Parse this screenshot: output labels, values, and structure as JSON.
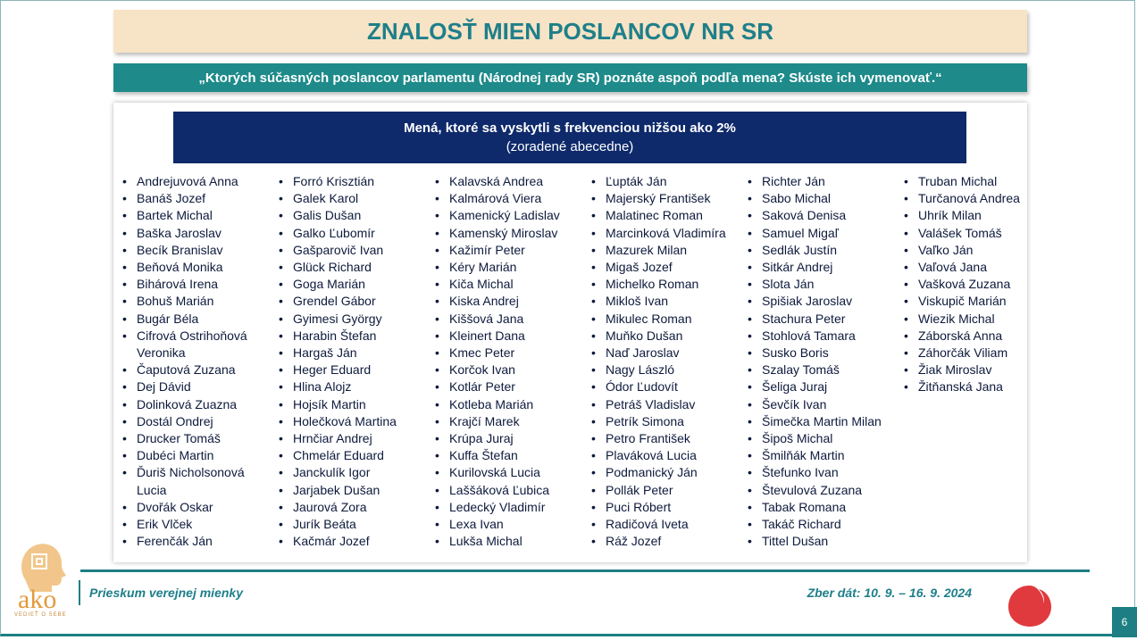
{
  "title": "ZNALOSŤ MIEN POSLANCOV NR SR",
  "question": "„Ktorých súčasných poslancov parlamentu (Národnej rady SR) poznáte aspoň podľa mena? Skúste ich vymenovať.“",
  "names_header": {
    "line1": "Mená, ktoré sa vyskytli s frekvenciou nižšou ako 2%",
    "line2": "(zoradené abecedne)"
  },
  "columns": [
    [
      "Andrejuvová Anna",
      "Banáš Jozef",
      "Bartek Michal",
      "Baška Jaroslav",
      "Becík Branislav",
      "Beňová Monika",
      "Bihárová Irena",
      "Bohuš Marián",
      "Bugár Béla",
      "Cifrová Ostrihoňová Veronika",
      "Čaputová Zuzana",
      "Dej Dávid",
      "Dolinková Zuazna",
      "Dostál Ondrej",
      "Drucker Tomáš",
      "Dubéci Martin",
      "Ďuriš Nicholsonová Lucia",
      "Dvořák Oskar",
      "Erik Vlček",
      "Ferenčák Ján"
    ],
    [
      "Forró Krisztián",
      "Galek Karol",
      "Galis Dušan",
      "Galko Ľubomír",
      "Gašparovič Ivan",
      "Glück Richard",
      "Goga Marián",
      "Grendel Gábor",
      "Gyimesi György",
      "Harabin Štefan",
      "Hargaš Ján",
      "Heger Eduard",
      "Hlina Alojz",
      "Hojsík Martin",
      "Holečková Martina",
      "Hrnčiar Andrej",
      "Chmelár Eduard",
      "Janckulík Igor",
      "Jarjabek Dušan",
      "Jaurová Zora",
      "Jurík Beáta",
      "Kačmár Jozef"
    ],
    [
      "Kalavská Andrea",
      "Kalmárová Viera",
      "Kamenický Ladislav",
      "Kamenský Miroslav",
      "Kažimír Peter",
      "Kéry Marián",
      "Kiča Michal",
      "Kiska Andrej",
      "Kiššová Jana",
      "Kleinert Dana",
      "Kmec Peter",
      "Korčok Ivan",
      "Kotlár Peter",
      "Kotleba Marián",
      "Krajčí Marek",
      "Krúpa Juraj",
      "Kuffa Štefan",
      "Kurilovská Lucia",
      "Laššáková Ľubica",
      "Ledecký Vladimír",
      "Lexa Ivan",
      "Lukša Michal"
    ],
    [
      "Ľupták Ján",
      "Majerský František",
      "Malatinec Roman",
      "Marcinková Vladimíra",
      "Mazurek Milan",
      "Migaš Jozef",
      "Michelko Roman",
      "Mikloš Ivan",
      "Mikulec Roman",
      "Muňko Dušan",
      "Naď Jaroslav",
      "Nagy László",
      "Ódor Ľudovít",
      "Petráš Vladislav",
      "Petrík Simona",
      "Petro František",
      "Plaváková Lucia",
      "Podmanický Ján",
      "Pollák Peter",
      "Puci Róbert",
      "Radičová Iveta",
      "Ráž Jozef"
    ],
    [
      "Richter Ján",
      "Sabo Michal",
      "Saková Denisa",
      "Samuel Migaľ",
      "Sedlák Justín",
      "Sitkár Andrej",
      "Slota Ján",
      "Spišiak Jaroslav",
      "Stachura Peter",
      "Stohlová Tamara",
      "Susko Boris",
      "Szalay Tomáš",
      "Šeliga Juraj",
      "Ševčík Ivan",
      "Šimečka Martin Milan",
      "Šipoš Michal",
      "Šmilňák Martin",
      "Štefunko Ivan",
      "Števulová Zuzana",
      "Tabak Romana",
      "Takáč Richard",
      "Tittel Dušan"
    ],
    [
      "Truban Michal",
      "Turčanová Andrea",
      "Uhrík Milan",
      "Valášek Tomáš",
      "Vaľko Ján",
      "Vaľová Jana",
      "Vašková Zuzana",
      "Viskupič Marián",
      "Wiezik Michal",
      "Záborská Anna",
      "Záhorčák Viliam",
      "Žiak Miroslav",
      "Žitňanská Jana"
    ]
  ],
  "footer": {
    "left": "Prieskum verejnej mienky",
    "right": "Zber dát: 10. 9. – 16. 9. 2024",
    "page": "6"
  },
  "logo": {
    "name": "ako",
    "tagline": "VEDIEŤ O SEBE",
    "logo_color": "#e8a24a",
    "swirl_color": "#e03a3e"
  }
}
